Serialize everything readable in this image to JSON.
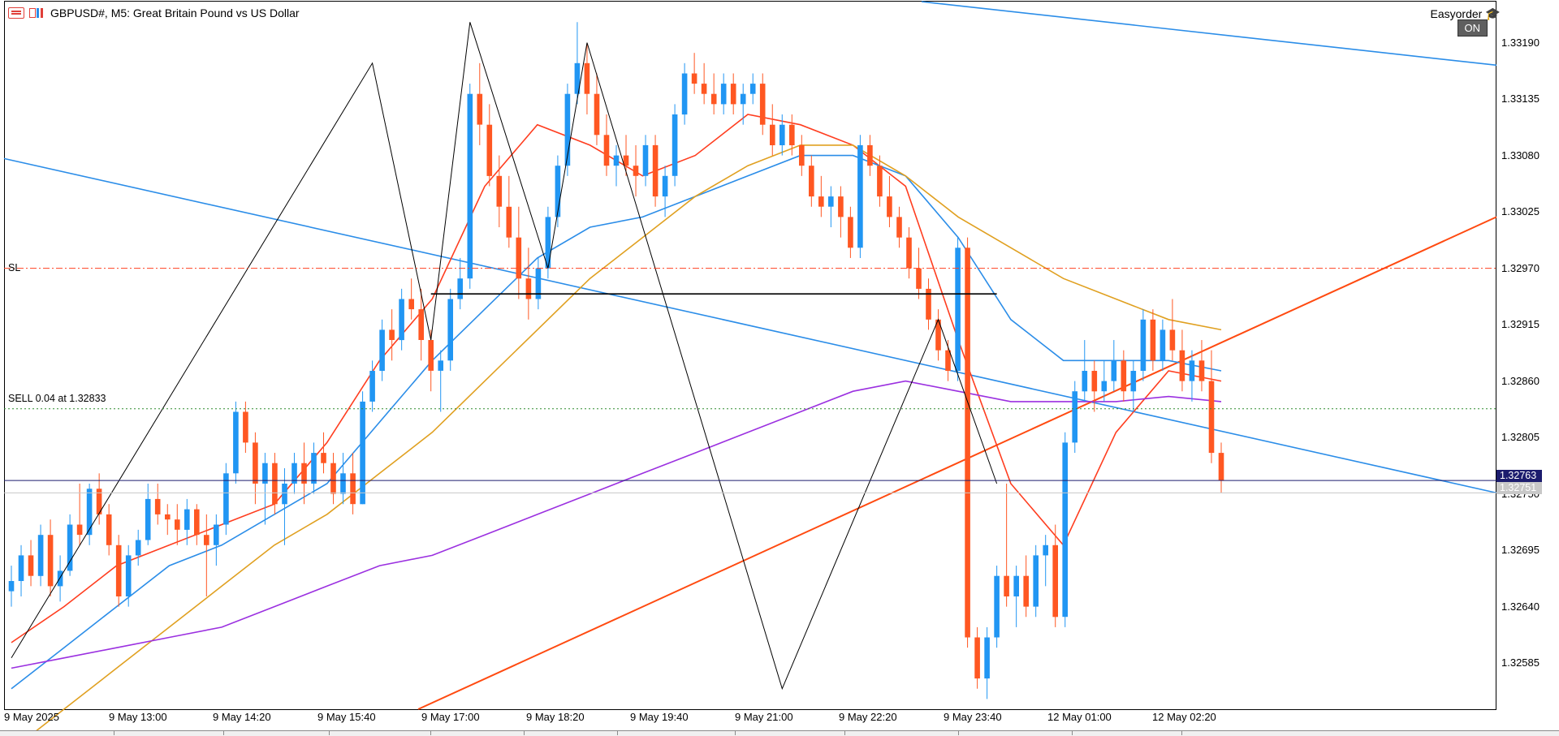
{
  "window": {
    "symbol_title": "GBPUSD#, M5:  Great Britain Pound vs US Dollar",
    "ea_name": "Easyorder",
    "ea_status": "ON"
  },
  "icons": {
    "menu": "menu-icon",
    "chart": "chart-type-icon",
    "ea": "graduation-cap-icon"
  },
  "chart_lines": {
    "sl_label": "SL",
    "sl_price": 1.3297,
    "order_label": "SELL 0.04 at 1.32833",
    "order_price": 1.32833,
    "horizontal_level": 1.32945
  },
  "price_axis": {
    "ticks": [
      "1.33190",
      "1.33135",
      "1.33080",
      "1.33025",
      "1.32970",
      "1.32915",
      "1.32860",
      "1.32805",
      "1.32750",
      "1.32695",
      "1.32640",
      "1.32585"
    ],
    "bid_badge": "1.32763",
    "ask_badge": "1.32751",
    "bid_color": "#1c1c6e",
    "ask_color": "#c8c8c8"
  },
  "time_axis": {
    "ticks": [
      "9 May 2025",
      "9 May 13:00",
      "9 May 14:20",
      "9 May 15:40",
      "9 May 17:00",
      "9 May 18:20",
      "9 May 19:40",
      "9 May 21:00",
      "9 May 22:20",
      "9 May 23:40",
      "12 May 01:00",
      "12 May 02:20"
    ]
  },
  "colors": {
    "bull_candle": "#2196f3",
    "bear_candle": "#ff5722",
    "ma_fast": "#ff3d1f",
    "ma_mid": "#2b8de8",
    "ma_slow": "#e0a020",
    "ma_long": "#9b30e0",
    "channel": "#2b8de8",
    "trend_up": "#ff4a10",
    "zigzag": "#000000"
  },
  "chart_data": {
    "type": "candlestick",
    "symbol": "GBPUSD#",
    "timeframe": "M5",
    "ylim": [
      1.3254,
      1.3323
    ],
    "candles_ohlc": [
      [
        1.32655,
        1.3268,
        1.3264,
        1.32665
      ],
      [
        1.32665,
        1.327,
        1.3265,
        1.3269
      ],
      [
        1.3269,
        1.32705,
        1.3266,
        1.3267
      ],
      [
        1.3267,
        1.3272,
        1.3266,
        1.3271
      ],
      [
        1.3271,
        1.32725,
        1.3265,
        1.3266
      ],
      [
        1.3266,
        1.3269,
        1.32645,
        1.32675
      ],
      [
        1.32675,
        1.3273,
        1.3267,
        1.3272
      ],
      [
        1.3272,
        1.3276,
        1.327,
        1.3271
      ],
      [
        1.3271,
        1.3276,
        1.327,
        1.32755
      ],
      [
        1.32755,
        1.3277,
        1.3272,
        1.3273
      ],
      [
        1.3273,
        1.3274,
        1.3269,
        1.327
      ],
      [
        1.327,
        1.3271,
        1.3264,
        1.3265
      ],
      [
        1.3265,
        1.327,
        1.3264,
        1.3269
      ],
      [
        1.3269,
        1.32715,
        1.3268,
        1.32705
      ],
      [
        1.32705,
        1.3276,
        1.327,
        1.32745
      ],
      [
        1.32745,
        1.3276,
        1.3272,
        1.3273
      ],
      [
        1.3273,
        1.3274,
        1.3271,
        1.32725
      ],
      [
        1.32725,
        1.3274,
        1.327,
        1.32715
      ],
      [
        1.32715,
        1.32745,
        1.327,
        1.32735
      ],
      [
        1.32735,
        1.3274,
        1.327,
        1.3271
      ],
      [
        1.3271,
        1.3273,
        1.3265,
        1.327
      ],
      [
        1.327,
        1.3273,
        1.3268,
        1.3272
      ],
      [
        1.3272,
        1.3278,
        1.3271,
        1.3277
      ],
      [
        1.3277,
        1.3284,
        1.3276,
        1.3283
      ],
      [
        1.3283,
        1.3284,
        1.3279,
        1.328
      ],
      [
        1.328,
        1.3281,
        1.3274,
        1.3276
      ],
      [
        1.3276,
        1.3279,
        1.3272,
        1.3278
      ],
      [
        1.3278,
        1.3279,
        1.3273,
        1.3274
      ],
      [
        1.3274,
        1.32775,
        1.327,
        1.3276
      ],
      [
        1.3276,
        1.3279,
        1.3275,
        1.3278
      ],
      [
        1.3278,
        1.328,
        1.3274,
        1.3276
      ],
      [
        1.3276,
        1.328,
        1.3275,
        1.3279
      ],
      [
        1.3279,
        1.3281,
        1.3277,
        1.3278
      ],
      [
        1.3278,
        1.3279,
        1.3274,
        1.3275
      ],
      [
        1.3275,
        1.3279,
        1.3274,
        1.3277
      ],
      [
        1.3277,
        1.3279,
        1.3273,
        1.3274
      ],
      [
        1.3274,
        1.3285,
        1.3274,
        1.3284
      ],
      [
        1.3284,
        1.3288,
        1.3283,
        1.3287
      ],
      [
        1.3287,
        1.3292,
        1.3286,
        1.3291
      ],
      [
        1.3291,
        1.3293,
        1.3288,
        1.329
      ],
      [
        1.329,
        1.3295,
        1.3289,
        1.3294
      ],
      [
        1.3294,
        1.3296,
        1.3292,
        1.3293
      ],
      [
        1.3293,
        1.3295,
        1.3288,
        1.329
      ],
      [
        1.329,
        1.3291,
        1.3285,
        1.3287
      ],
      [
        1.3287,
        1.3289,
        1.3283,
        1.3288
      ],
      [
        1.3288,
        1.3295,
        1.3287,
        1.3294
      ],
      [
        1.3294,
        1.3298,
        1.3293,
        1.3296
      ],
      [
        1.3296,
        1.3315,
        1.3295,
        1.3314
      ],
      [
        1.3314,
        1.3317,
        1.3309,
        1.3311
      ],
      [
        1.3311,
        1.3313,
        1.3305,
        1.3306
      ],
      [
        1.3306,
        1.3308,
        1.3301,
        1.3303
      ],
      [
        1.3303,
        1.3306,
        1.3299,
        1.33
      ],
      [
        1.33,
        1.3303,
        1.3294,
        1.3296
      ],
      [
        1.3296,
        1.3299,
        1.3292,
        1.3294
      ],
      [
        1.3294,
        1.3298,
        1.3293,
        1.3297
      ],
      [
        1.3297,
        1.3303,
        1.3296,
        1.3302
      ],
      [
        1.3302,
        1.3308,
        1.3301,
        1.3307
      ],
      [
        1.3307,
        1.3315,
        1.3306,
        1.3314
      ],
      [
        1.3314,
        1.3321,
        1.3313,
        1.3317
      ],
      [
        1.3317,
        1.3319,
        1.3312,
        1.3314
      ],
      [
        1.3314,
        1.3316,
        1.3309,
        1.331
      ],
      [
        1.331,
        1.3312,
        1.3306,
        1.3307
      ],
      [
        1.3307,
        1.3309,
        1.3305,
        1.3308
      ],
      [
        1.3308,
        1.331,
        1.3306,
        1.3307
      ],
      [
        1.3307,
        1.3309,
        1.3304,
        1.3306
      ],
      [
        1.3306,
        1.331,
        1.3305,
        1.3309
      ],
      [
        1.3309,
        1.331,
        1.3303,
        1.3304
      ],
      [
        1.3304,
        1.3307,
        1.3302,
        1.3306
      ],
      [
        1.3306,
        1.3313,
        1.3305,
        1.3312
      ],
      [
        1.3312,
        1.3317,
        1.3311,
        1.3316
      ],
      [
        1.3316,
        1.3318,
        1.3314,
        1.3315
      ],
      [
        1.3315,
        1.3317,
        1.3313,
        1.3314
      ],
      [
        1.3314,
        1.3316,
        1.3312,
        1.3313
      ],
      [
        1.3313,
        1.3316,
        1.3312,
        1.3315
      ],
      [
        1.3315,
        1.3316,
        1.3312,
        1.3313
      ],
      [
        1.3313,
        1.3315,
        1.3311,
        1.3314
      ],
      [
        1.3314,
        1.3316,
        1.3313,
        1.3315
      ],
      [
        1.3315,
        1.3316,
        1.331,
        1.3311
      ],
      [
        1.3311,
        1.3313,
        1.3308,
        1.3309
      ],
      [
        1.3309,
        1.3312,
        1.3308,
        1.3311
      ],
      [
        1.3311,
        1.3312,
        1.3308,
        1.3309
      ],
      [
        1.3309,
        1.331,
        1.3306,
        1.3307
      ],
      [
        1.3307,
        1.3308,
        1.3303,
        1.3304
      ],
      [
        1.3304,
        1.3306,
        1.3302,
        1.3303
      ],
      [
        1.3303,
        1.3305,
        1.3301,
        1.3304
      ],
      [
        1.3304,
        1.3305,
        1.33,
        1.3302
      ],
      [
        1.3302,
        1.3303,
        1.3298,
        1.3299
      ],
      [
        1.3299,
        1.331,
        1.3298,
        1.3309
      ],
      [
        1.3309,
        1.331,
        1.3306,
        1.3307
      ],
      [
        1.3307,
        1.3308,
        1.3303,
        1.3304
      ],
      [
        1.3304,
        1.3306,
        1.3301,
        1.3302
      ],
      [
        1.3302,
        1.3303,
        1.3299,
        1.33
      ],
      [
        1.33,
        1.3301,
        1.3296,
        1.3297
      ],
      [
        1.3297,
        1.3299,
        1.3294,
        1.3295
      ],
      [
        1.3295,
        1.3296,
        1.3291,
        1.3292
      ],
      [
        1.3292,
        1.3293,
        1.3288,
        1.3289
      ],
      [
        1.3289,
        1.329,
        1.3286,
        1.3287
      ],
      [
        1.3287,
        1.33,
        1.3286,
        1.3299
      ],
      [
        1.3299,
        1.33,
        1.326,
        1.3261
      ],
      [
        1.3261,
        1.3262,
        1.3256,
        1.3257
      ],
      [
        1.3257,
        1.3262,
        1.3255,
        1.3261
      ],
      [
        1.3261,
        1.3268,
        1.326,
        1.3267
      ],
      [
        1.3267,
        1.3276,
        1.3264,
        1.3265
      ],
      [
        1.3265,
        1.3268,
        1.3262,
        1.3267
      ],
      [
        1.3267,
        1.3269,
        1.3263,
        1.3264
      ],
      [
        1.3264,
        1.327,
        1.3263,
        1.3269
      ],
      [
        1.3269,
        1.3271,
        1.3266,
        1.327
      ],
      [
        1.327,
        1.3272,
        1.3262,
        1.3263
      ],
      [
        1.3263,
        1.3281,
        1.3262,
        1.328
      ],
      [
        1.328,
        1.3286,
        1.3279,
        1.3285
      ],
      [
        1.3285,
        1.329,
        1.3284,
        1.3287
      ],
      [
        1.3287,
        1.3288,
        1.3283,
        1.3285
      ],
      [
        1.3285,
        1.3288,
        1.3284,
        1.3286
      ],
      [
        1.3286,
        1.329,
        1.3285,
        1.3288
      ],
      [
        1.3288,
        1.3289,
        1.3284,
        1.3285
      ],
      [
        1.3285,
        1.3288,
        1.3283,
        1.3287
      ],
      [
        1.3287,
        1.3293,
        1.3286,
        1.3292
      ],
      [
        1.3292,
        1.3293,
        1.3287,
        1.3288
      ],
      [
        1.3288,
        1.3292,
        1.3287,
        1.3291
      ],
      [
        1.3291,
        1.3294,
        1.3288,
        1.3289
      ],
      [
        1.3289,
        1.3291,
        1.3285,
        1.3286
      ],
      [
        1.3286,
        1.3289,
        1.3284,
        1.3288
      ],
      [
        1.3288,
        1.329,
        1.3285,
        1.3286
      ],
      [
        1.3286,
        1.3289,
        1.3278,
        1.3279
      ],
      [
        1.3279,
        1.328,
        1.32751,
        1.32763
      ]
    ],
    "moving_averages": [
      {
        "period_role": "fast",
        "points": [
          1.32605,
          1.3264,
          1.3268,
          1.327,
          1.3272,
          1.3274,
          1.328,
          1.3288,
          1.3294,
          1.3305,
          1.3311,
          1.3309,
          1.3306,
          1.3308,
          1.3312,
          1.3311,
          1.3309,
          1.3305,
          1.329,
          1.3276,
          1.327,
          1.3281,
          1.3287,
          1.3286
        ]
      },
      {
        "period_role": "mid",
        "points": [
          1.3256,
          1.326,
          1.3264,
          1.3268,
          1.327,
          1.3273,
          1.3276,
          1.3282,
          1.3288,
          1.3293,
          1.3298,
          1.3301,
          1.3302,
          1.3304,
          1.3306,
          1.3308,
          1.3308,
          1.3306,
          1.33,
          1.3292,
          1.3288,
          1.3288,
          1.3288,
          1.3287
        ]
      },
      {
        "period_role": "slow",
        "points": [
          1.325,
          1.3254,
          1.3258,
          1.3262,
          1.3266,
          1.327,
          1.3273,
          1.3277,
          1.3281,
          1.3286,
          1.3291,
          1.3296,
          1.33,
          1.3304,
          1.3307,
          1.3309,
          1.3309,
          1.3306,
          1.3302,
          1.3299,
          1.3296,
          1.3294,
          1.3292,
          1.3291
        ]
      },
      {
        "period_role": "long",
        "points": [
          1.3258,
          1.3259,
          1.326,
          1.3261,
          1.3262,
          1.3264,
          1.3266,
          1.3268,
          1.3269,
          1.3271,
          1.3273,
          1.3275,
          1.3277,
          1.3279,
          1.3281,
          1.3283,
          1.3285,
          1.3286,
          1.3285,
          1.3284,
          1.3284,
          1.3284,
          1.32845,
          1.3284
        ]
      }
    ]
  }
}
